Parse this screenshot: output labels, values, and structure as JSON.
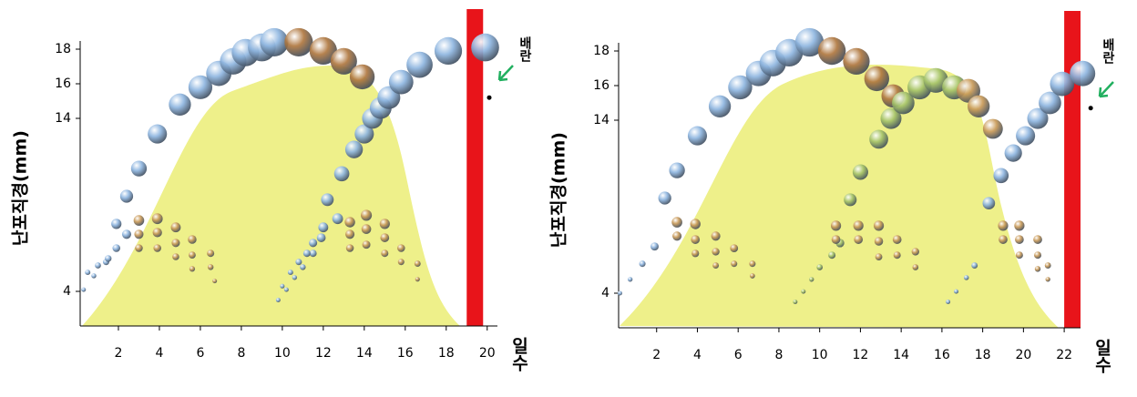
{
  "chart_data": [
    {
      "type": "scatter",
      "y_label": "난포직경(mm)",
      "x_label": "일수",
      "xlim": [
        0,
        20.5
      ],
      "ylim": [
        2,
        19
      ],
      "xticks": [
        2,
        4,
        6,
        8,
        10,
        12,
        14,
        16,
        18,
        20
      ],
      "yticks": [
        4,
        14,
        16,
        18
      ],
      "ovulation": {
        "label": "배란",
        "band": [
          19,
          19.8
        ],
        "point": [
          20.1,
          15.2
        ]
      },
      "series": [
        {
          "color": "#8fb6e0",
          "x": [
            0.3,
            0.8,
            1.4,
            1.9,
            2.4,
            3.0,
            3.9,
            5.0,
            6.0,
            6.9,
            7.6,
            8.2,
            9.0,
            9.6
          ],
          "values": [
            4.1,
            4.9,
            5.7,
            7.9,
            9.5,
            11.1,
            13.1,
            14.8,
            15.8,
            16.6,
            17.3,
            17.8,
            18.1,
            18.4
          ]
        },
        {
          "color": "#b07840",
          "x": [
            10.8,
            12.0,
            13.0,
            13.9
          ],
          "values": [
            18.4,
            17.9,
            17.3,
            16.4
          ]
        },
        {
          "color": "#8fb6e0",
          "x": [
            9.8,
            10.2,
            10.6,
            11.0,
            11.5,
            11.9,
            12.2,
            12.9,
            13.5,
            14.0,
            14.4,
            14.8,
            15.2,
            15.8,
            16.7,
            18.1,
            19.9
          ],
          "values": [
            3.5,
            4.1,
            4.8,
            5.4,
            6.2,
            7.1,
            9.3,
            10.8,
            12.2,
            13.1,
            14.0,
            14.6,
            15.2,
            16.1,
            17.1,
            17.9,
            18.1
          ]
        },
        {
          "color": "#8fb6e0",
          "x": [
            0.5,
            1.0,
            1.5,
            1.9,
            2.4,
            10.0,
            10.4,
            10.8,
            11.2,
            11.5,
            12.0,
            12.7
          ],
          "values": [
            5.1,
            5.5,
            5.9,
            6.5,
            7.3,
            4.3,
            5.1,
            5.7,
            6.2,
            6.8,
            7.7,
            8.2
          ]
        },
        {
          "color": "#c99a58",
          "x": [
            3.0,
            3.0,
            3.0,
            3.9,
            3.9,
            3.9,
            4.8,
            4.8,
            4.8,
            5.6,
            5.6,
            5.6,
            6.5,
            6.5,
            6.7,
            13.3,
            13.3,
            13.3,
            14.1,
            14.1,
            14.1,
            15.0,
            15.0,
            15.0,
            15.8,
            15.8,
            16.6,
            16.6
          ],
          "values": [
            8.1,
            7.3,
            6.5,
            8.2,
            7.4,
            6.5,
            7.7,
            6.8,
            6.0,
            7.0,
            6.1,
            5.3,
            6.2,
            5.4,
            4.6,
            8.0,
            7.3,
            6.5,
            8.4,
            7.6,
            6.7,
            7.9,
            7.1,
            6.2,
            6.5,
            5.7,
            5.6,
            4.7
          ]
        }
      ]
    },
    {
      "type": "scatter",
      "y_label": "난포직경(mm)",
      "x_label": "일수",
      "xlim": [
        0,
        22.8
      ],
      "ylim": [
        2,
        19
      ],
      "xticks": [
        2,
        4,
        6,
        8,
        10,
        12,
        14,
        16,
        18,
        20,
        22
      ],
      "yticks": [
        4,
        14,
        16,
        18
      ],
      "ovulation": {
        "label": "배란",
        "band": [
          22,
          22.8
        ],
        "point": [
          23.3,
          14.7
        ]
      },
      "series": [
        {
          "color": "#8fb6e0",
          "x": [
            0.2,
            0.7,
            1.3,
            1.9,
            2.4,
            3.0,
            4.0,
            5.1,
            6.1,
            7.0,
            7.7,
            8.5,
            9.5
          ],
          "values": [
            4.0,
            4.8,
            5.7,
            6.7,
            9.5,
            11.1,
            13.1,
            14.8,
            15.9,
            16.7,
            17.3,
            17.9,
            18.5
          ]
        },
        {
          "color": "#b07840",
          "x": [
            10.6,
            11.8,
            12.8,
            13.6
          ],
          "values": [
            18.0,
            17.4,
            16.4,
            15.4
          ]
        },
        {
          "color": "#a6c46a",
          "x": [
            8.8,
            9.2,
            9.6,
            10.0,
            10.6,
            11.0,
            11.5,
            12.0,
            12.9,
            13.5,
            14.1,
            14.9,
            15.7,
            16.6
          ],
          "values": [
            3.5,
            4.1,
            4.8,
            5.5,
            6.2,
            6.9,
            9.4,
            11.0,
            12.9,
            14.1,
            15.0,
            15.9,
            16.3,
            15.9
          ]
        },
        {
          "color": "#c99a58",
          "x": [
            17.3,
            17.8,
            18.5
          ],
          "values": [
            15.7,
            14.8,
            13.5
          ]
        },
        {
          "color": "#8fb6e0",
          "x": [
            16.3,
            16.7,
            17.2,
            17.6,
            18.3,
            18.9,
            19.5,
            20.1,
            20.7,
            21.3,
            21.9,
            22.9
          ],
          "values": [
            3.5,
            4.1,
            4.9,
            5.6,
            9.2,
            10.8,
            12.1,
            13.1,
            14.1,
            15.0,
            16.1,
            16.7
          ]
        },
        {
          "color": "#c99a58",
          "x": [
            3.0,
            3.0,
            3.9,
            3.9,
            3.9,
            4.9,
            4.9,
            4.9,
            5.8,
            5.8,
            6.7,
            6.7,
            10.8,
            10.8,
            11.9,
            11.9,
            12.9,
            12.9,
            12.9,
            13.8,
            13.8,
            14.7,
            14.7,
            19.0,
            19.0,
            19.8,
            19.8,
            19.8,
            20.7,
            20.7,
            20.7,
            21.2,
            21.2
          ],
          "values": [
            8.1,
            7.3,
            8.0,
            7.1,
            6.3,
            7.3,
            6.4,
            5.6,
            6.6,
            5.7,
            5.7,
            5.0,
            7.9,
            7.1,
            7.9,
            7.1,
            7.9,
            7.0,
            6.1,
            7.1,
            6.2,
            6.4,
            5.5,
            7.9,
            7.1,
            7.9,
            7.1,
            6.2,
            7.1,
            6.2,
            5.4,
            5.6,
            4.8
          ]
        }
      ]
    }
  ]
}
